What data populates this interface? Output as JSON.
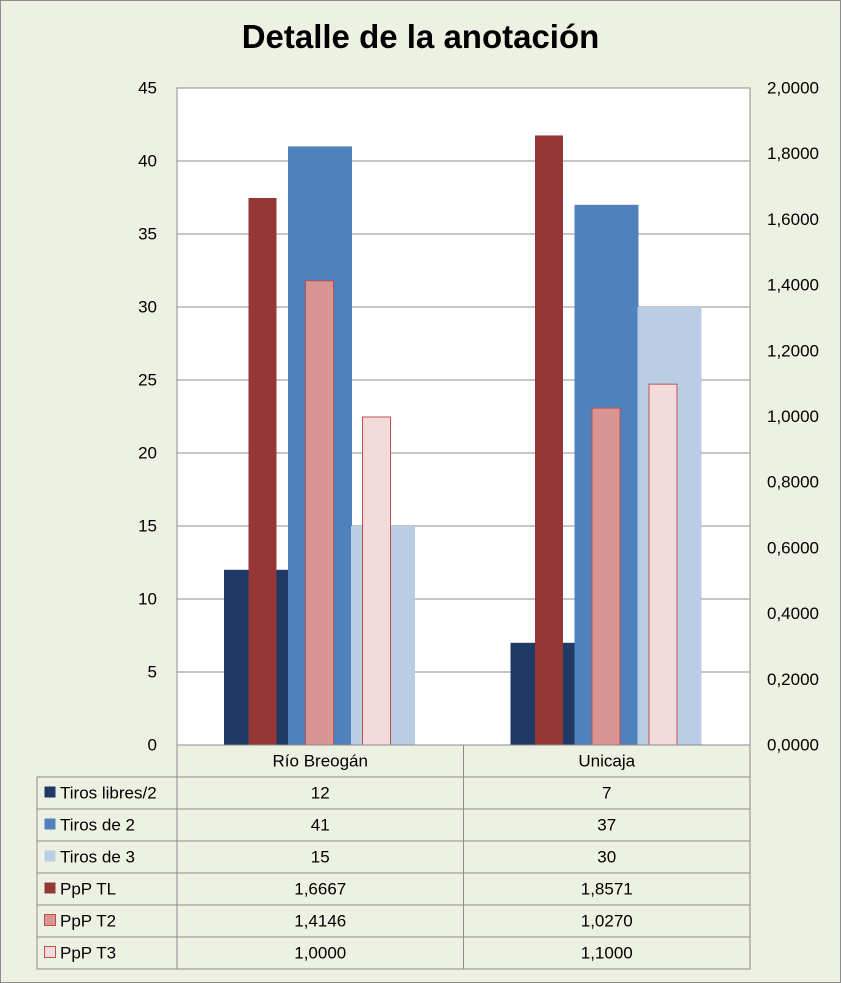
{
  "chart_data": {
    "type": "bar",
    "title": "Detalle de la anotación",
    "categories": [
      "Río Breogán",
      "Unicaja"
    ],
    "series": [
      {
        "name": "Tiros libres/2",
        "axis": "left",
        "values": [
          12,
          7
        ],
        "labels": [
          "12",
          "7"
        ],
        "color": "#1f3864"
      },
      {
        "name": "Tiros de 2",
        "axis": "left",
        "values": [
          41,
          37
        ],
        "labels": [
          "41",
          "37"
        ],
        "color": "#4f81bd"
      },
      {
        "name": "Tiros de 3",
        "axis": "left",
        "values": [
          15,
          30
        ],
        "labels": [
          "15",
          "30"
        ],
        "color": "#b9cde5"
      },
      {
        "name": "PpP TL",
        "axis": "right",
        "values": [
          1.6667,
          1.8571
        ],
        "labels": [
          "1,6667",
          "1,8571"
        ],
        "color": "#953735"
      },
      {
        "name": "PpP T2",
        "axis": "right",
        "values": [
          1.4146,
          1.027
        ],
        "labels": [
          "1,4146",
          "1,0270"
        ],
        "color": "#d99594"
      },
      {
        "name": "PpP T3",
        "axis": "right",
        "values": [
          1.0,
          1.1
        ],
        "labels": [
          "1,0000",
          "1,1000"
        ],
        "color": "#f2dcdb"
      }
    ],
    "y_left": {
      "min": 0,
      "max": 45,
      "step": 5,
      "ticks": [
        "0",
        "5",
        "10",
        "15",
        "20",
        "25",
        "30",
        "35",
        "40",
        "45"
      ]
    },
    "y_right": {
      "min": 0,
      "max": 2,
      "step": 0.2,
      "ticks": [
        "0,0000",
        "0,2000",
        "0,4000",
        "0,6000",
        "0,8000",
        "1,0000",
        "1,2000",
        "1,4000",
        "1,6000",
        "1,8000",
        "2,0000"
      ]
    },
    "grid": true,
    "legend": "data-table"
  }
}
